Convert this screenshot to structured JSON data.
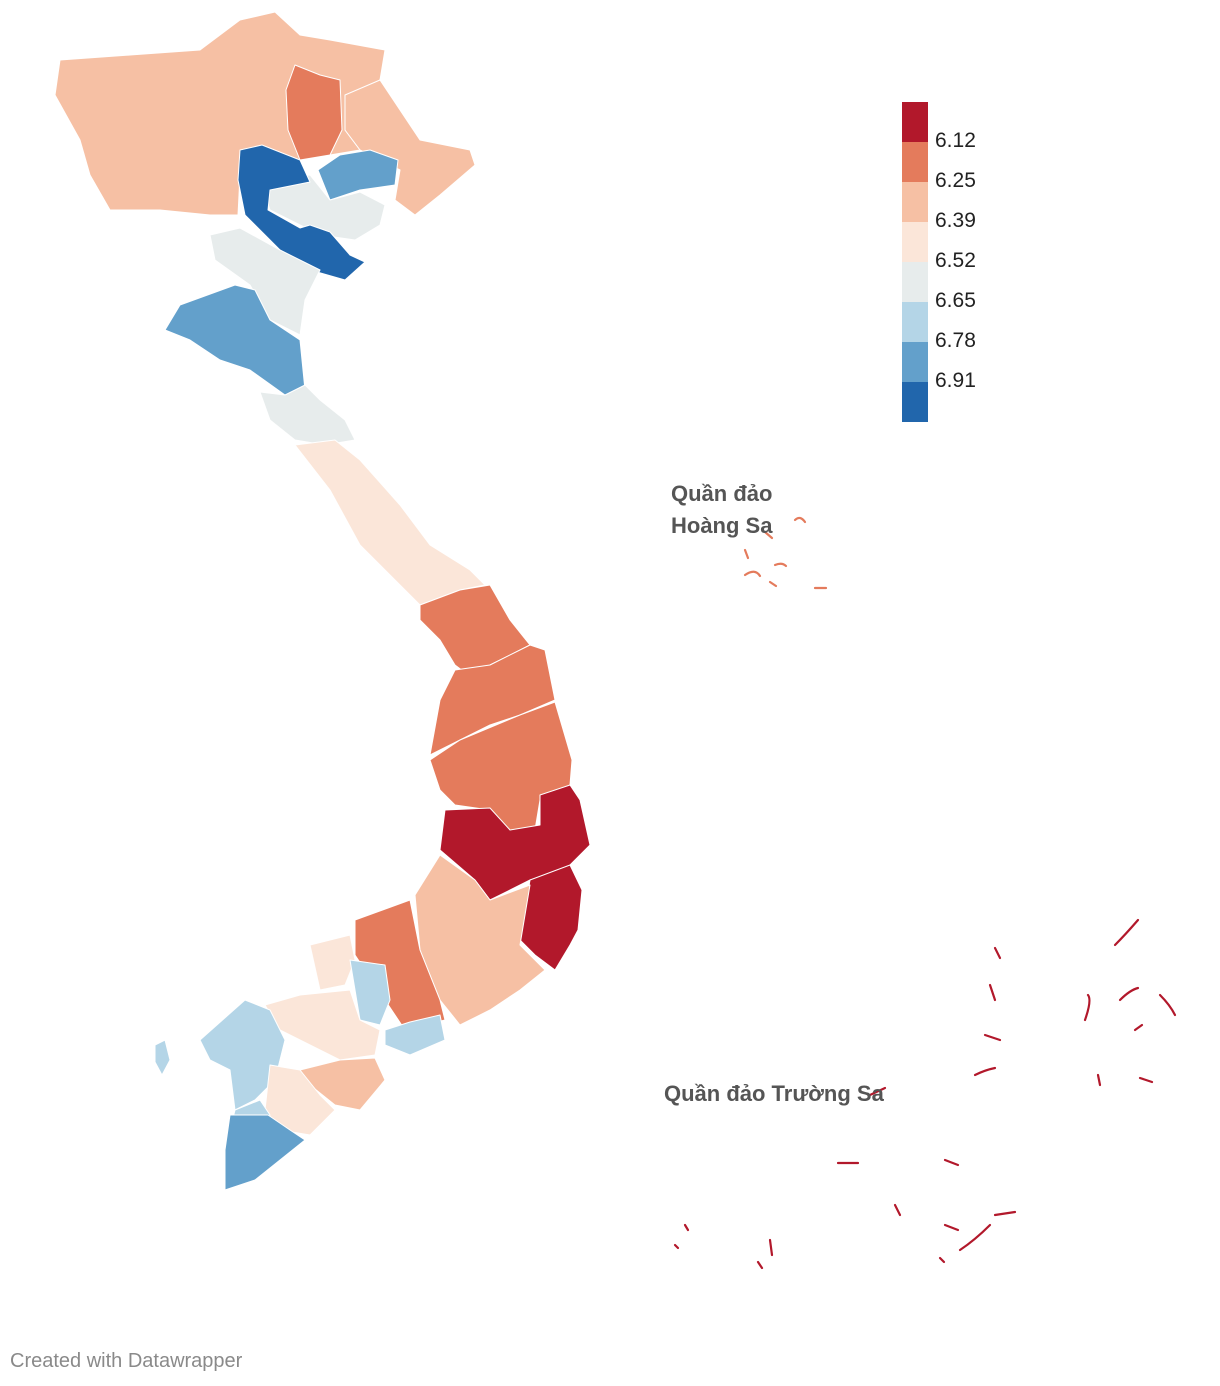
{
  "legend": {
    "colors": [
      "#b2182b",
      "#e47b5c",
      "#f6c0a4",
      "#fbe6d9",
      "#e7ecec",
      "#b4d5e7",
      "#63a0cb",
      "#2166ac"
    ],
    "labels": [
      "6.12",
      "6.25",
      "6.39",
      "6.52",
      "6.65",
      "6.78",
      "6.91"
    ]
  },
  "labels": {
    "hoang_sa_line1": "Quần đảo",
    "hoang_sa_line2": "Hoàng Sa",
    "truong_sa": "Quần đảo Trường Sa"
  },
  "credit": "Created with Datawrapper",
  "icons": {
    "map": "vietnam-choropleth-map"
  }
}
